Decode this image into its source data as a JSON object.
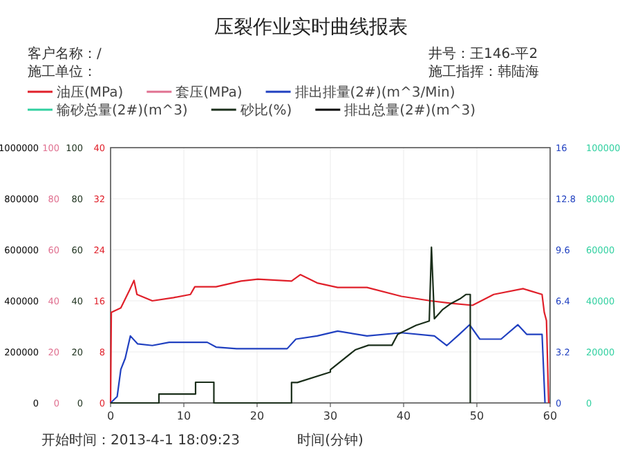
{
  "chart_data": {
    "type": "line",
    "title": "压裂作业实时曲线报表",
    "annotations": [
      "客户名称：/",
      "施工单位：",
      "井号：王146-平2",
      "施工指挥：韩陆海",
      "开始时间：2013-4-1 18:09:23",
      "0",
      "20",
      "40",
      "60",
      "80",
      "100",
      "0",
      "200000",
      "400000",
      "600000",
      "800000",
      "1000000",
      "0",
      "20000",
      "40000",
      "60000",
      "80000",
      "100000"
    ],
    "xlabel": "时间(分钟)",
    "xlim": [
      0,
      60
    ],
    "xticks": [
      0,
      10,
      20,
      30,
      40,
      50,
      60
    ],
    "ylim": [
      0,
      40
    ],
    "yticks": [
      0,
      8,
      16,
      24,
      32,
      40
    ],
    "y2lim": [
      0,
      16
    ],
    "y2ticks": [
      0,
      3.2,
      6.4,
      9.6,
      12.8,
      16
    ],
    "y3lim": [
      0,
      100
    ],
    "y3ticks": [
      0,
      20,
      40,
      60,
      80,
      100
    ],
    "grid": true,
    "legend": "top",
    "series": [
      {
        "name": "油压(MPa)",
        "color": "#e0202a",
        "axis": "y",
        "x": [
          0,
          0.1,
          1.4,
          2.6,
          3.2,
          3.6,
          5.7,
          8.6,
          10.9,
          11.5,
          14.4,
          17.8,
          20.1,
          24.7,
          25.9,
          28.2,
          31,
          35,
          39.7,
          43.7,
          46.5,
          49.4,
          52.3,
          56.3,
          58.9,
          59.2,
          59.5,
          59.8
        ],
        "values": [
          0,
          14.2,
          14.9,
          17.7,
          19.2,
          17.0,
          16.0,
          16.5,
          17.0,
          18.2,
          18.2,
          19.1,
          19.4,
          19.1,
          20.1,
          18.8,
          18.1,
          18.1,
          16.7,
          16.0,
          15.6,
          15.3,
          17.0,
          17.9,
          17.0,
          14.2,
          12.9,
          0
        ]
      },
      {
        "name": "套压(MPa)",
        "color": "#e07090",
        "axis": "y",
        "values": [
          null
        ]
      },
      {
        "name": "排出排量(2#)(m^3/Min)",
        "color": "#2040c0",
        "axis": "y2",
        "x": [
          0,
          0.9,
          1.4,
          2,
          2.7,
          3.7,
          5.7,
          8,
          13.2,
          14.4,
          17.2,
          24.1,
          25.3,
          28.2,
          31,
          35,
          39.7,
          44.2,
          45.9,
          47.6,
          49,
          50.4,
          53.3,
          55.6,
          56.8,
          58.9,
          59.3
        ],
        "values": [
          0,
          0.4,
          2.1,
          2.8,
          4.2,
          3.7,
          3.6,
          3.8,
          3.8,
          3.5,
          3.4,
          3.4,
          4.0,
          4.2,
          4.5,
          4.2,
          4.4,
          4.2,
          3.6,
          4.3,
          4.9,
          4.0,
          4.0,
          4.9,
          4.3,
          4.3,
          0
        ]
      },
      {
        "name": "输砂总量(2#)(m^3)",
        "color": "#30d0a0",
        "axis": "y2",
        "values": [
          null
        ]
      },
      {
        "name": "砂比(%)",
        "color": "#1a2e1a",
        "axis": "y3",
        "x": [
          0,
          6.6,
          6.6,
          11.6,
          11.6,
          14.1,
          14.1,
          24.7,
          24.7,
          25.5,
          30.0,
          30.0,
          33.4,
          35.2,
          38.4,
          39.2,
          41.7,
          43.5,
          43.8,
          44.2,
          45.3,
          46.5,
          47.7,
          48.5,
          49.1,
          49.1
        ],
        "values": [
          0,
          0,
          3.5,
          3.5,
          8.1,
          8.1,
          0,
          0,
          8.0,
          8.0,
          12.1,
          13,
          20.8,
          22.6,
          22.6,
          26.9,
          30.4,
          32.1,
          61,
          33,
          36.5,
          39,
          40.8,
          42.5,
          42.5,
          0
        ]
      },
      {
        "name": "排出总量(2#)(m^3)",
        "color": "#000000",
        "axis": "y3",
        "values": [
          null
        ]
      }
    ]
  }
}
